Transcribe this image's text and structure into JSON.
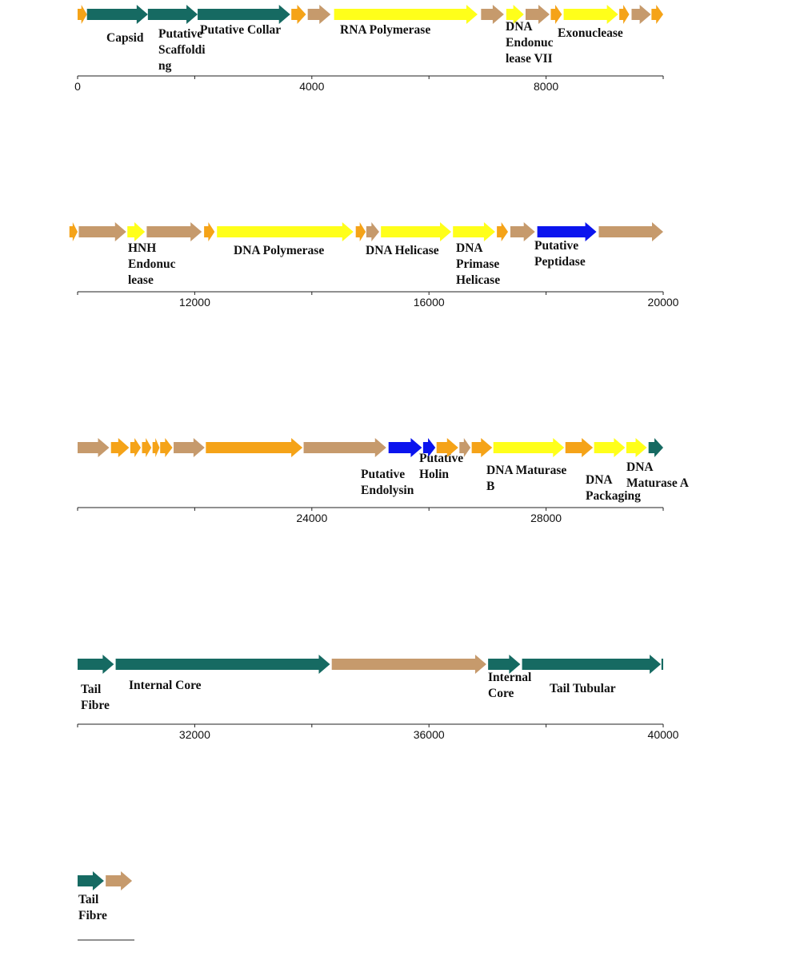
{
  "colors": {
    "structural": "#166a62",
    "replication": "#ffff1a",
    "lysis": "#0b14ee",
    "hypothetical_brown": "#c69a6c",
    "hypothetical_orange": "#f5a318",
    "axis": "#222222"
  },
  "tracks": [
    {
      "name": "track-1",
      "start": 0,
      "end": 10000,
      "ticks": [
        {
          "value": 0,
          "label": "0"
        },
        {
          "value": 4000,
          "label": "4000"
        },
        {
          "value": 8000,
          "label": "8000"
        }
      ],
      "genes": [
        {
          "start": 0,
          "end": 160,
          "kind": "hypothetical_orange",
          "label": []
        },
        {
          "start": 160,
          "end": 1200,
          "kind": "structural",
          "label": [
            "Capsid"
          ]
        },
        {
          "start": 1200,
          "end": 2050,
          "kind": "structural",
          "label": [
            "Putative",
            "Scaffoldi",
            "ng"
          ]
        },
        {
          "start": 2050,
          "end": 3630,
          "kind": "structural",
          "label": [
            "Putative Collar"
          ]
        },
        {
          "start": 3650,
          "end": 3900,
          "kind": "hypothetical_orange",
          "label": []
        },
        {
          "start": 3930,
          "end": 4320,
          "kind": "hypothetical_brown",
          "label": []
        },
        {
          "start": 4380,
          "end": 6830,
          "kind": "replication",
          "label": [
            "RNA Polymerase"
          ]
        },
        {
          "start": 6890,
          "end": 7280,
          "kind": "hypothetical_brown",
          "label": []
        },
        {
          "start": 7320,
          "end": 7620,
          "kind": "replication",
          "label": [
            "DNA",
            "Endonuc",
            "lease VII"
          ]
        },
        {
          "start": 7650,
          "end": 8060,
          "kind": "hypothetical_brown",
          "label": []
        },
        {
          "start": 8080,
          "end": 8270,
          "kind": "hypothetical_orange",
          "label": []
        },
        {
          "start": 8300,
          "end": 9230,
          "kind": "replication",
          "label": [
            "Exonuclease"
          ]
        },
        {
          "start": 9250,
          "end": 9420,
          "kind": "hypothetical_orange",
          "label": []
        },
        {
          "start": 9460,
          "end": 9790,
          "kind": "hypothetical_brown",
          "label": []
        },
        {
          "start": 9800,
          "end": 10000,
          "kind": "hypothetical_orange",
          "label": []
        }
      ]
    },
    {
      "name": "track-2",
      "start": 10000,
      "end": 20000,
      "ticks": [
        {
          "value": 12000,
          "label": "12000"
        },
        {
          "value": 16000,
          "label": "16000"
        },
        {
          "value": 20000,
          "label": "20000"
        }
      ],
      "genes": [
        {
          "start": 9860,
          "end": 10000,
          "kind": "hypothetical_orange",
          "label": []
        },
        {
          "start": 10020,
          "end": 10830,
          "kind": "hypothetical_brown",
          "label": []
        },
        {
          "start": 10850,
          "end": 11150,
          "kind": "replication",
          "label": [
            "HNH",
            "Endonuc",
            "lease"
          ]
        },
        {
          "start": 11180,
          "end": 12120,
          "kind": "hypothetical_brown",
          "label": []
        },
        {
          "start": 12160,
          "end": 12340,
          "kind": "hypothetical_orange",
          "label": []
        },
        {
          "start": 12380,
          "end": 14710,
          "kind": "replication",
          "label": [
            "DNA Polymerase"
          ]
        },
        {
          "start": 14750,
          "end": 14920,
          "kind": "hypothetical_orange",
          "label": []
        },
        {
          "start": 14930,
          "end": 15150,
          "kind": "hypothetical_brown",
          "label": []
        },
        {
          "start": 15180,
          "end": 16380,
          "kind": "replication",
          "label": [
            "DNA Helicase"
          ]
        },
        {
          "start": 16410,
          "end": 17130,
          "kind": "replication",
          "label": [
            "DNA",
            "Primase",
            "Helicase"
          ]
        },
        {
          "start": 17160,
          "end": 17350,
          "kind": "hypothetical_orange",
          "label": []
        },
        {
          "start": 17390,
          "end": 17810,
          "kind": "hypothetical_brown",
          "label": []
        },
        {
          "start": 17850,
          "end": 18860,
          "kind": "lysis",
          "label": [
            "Putative",
            "Peptidase"
          ]
        },
        {
          "start": 18900,
          "end": 20000,
          "kind": "hypothetical_brown",
          "label": []
        }
      ]
    },
    {
      "name": "track-3",
      "start": 20000,
      "end": 30000,
      "ticks": [
        {
          "value": 24000,
          "label": "24000"
        },
        {
          "value": 28000,
          "label": "28000"
        }
      ],
      "genes": [
        {
          "start": 20000,
          "end": 20540,
          "kind": "hypothetical_brown",
          "label": []
        },
        {
          "start": 20570,
          "end": 20880,
          "kind": "hypothetical_orange",
          "label": []
        },
        {
          "start": 20900,
          "end": 21080,
          "kind": "hypothetical_orange",
          "label": []
        },
        {
          "start": 21100,
          "end": 21260,
          "kind": "hypothetical_orange",
          "label": []
        },
        {
          "start": 21280,
          "end": 21400,
          "kind": "hypothetical_orange",
          "label": []
        },
        {
          "start": 21410,
          "end": 21620,
          "kind": "hypothetical_orange",
          "label": []
        },
        {
          "start": 21640,
          "end": 22170,
          "kind": "hypothetical_brown",
          "label": []
        },
        {
          "start": 22190,
          "end": 23840,
          "kind": "hypothetical_orange",
          "label": []
        },
        {
          "start": 23860,
          "end": 25270,
          "kind": "hypothetical_brown",
          "label": []
        },
        {
          "start": 25310,
          "end": 25880,
          "kind": "lysis",
          "label": [
            "Putative",
            "Endolysin"
          ]
        },
        {
          "start": 25900,
          "end": 26110,
          "kind": "lysis",
          "label": [
            "Putative",
            "Holin"
          ]
        },
        {
          "start": 26130,
          "end": 26500,
          "kind": "hypothetical_orange",
          "label": []
        },
        {
          "start": 26520,
          "end": 26710,
          "kind": "hypothetical_brown",
          "label": []
        },
        {
          "start": 26730,
          "end": 27080,
          "kind": "hypothetical_orange",
          "label": []
        },
        {
          "start": 27100,
          "end": 28310,
          "kind": "replication",
          "label": [
            "DNA Maturase",
            "B"
          ]
        },
        {
          "start": 28330,
          "end": 28800,
          "kind": "hypothetical_orange",
          "label": []
        },
        {
          "start": 28820,
          "end": 29350,
          "kind": "replication",
          "label": [
            "DNA",
            "Packaging"
          ]
        },
        {
          "start": 29370,
          "end": 29720,
          "kind": "replication",
          "label": [
            "DNA",
            "Maturase A"
          ]
        },
        {
          "start": 29750,
          "end": 30000,
          "kind": "structural",
          "label": []
        }
      ]
    },
    {
      "name": "track-4",
      "start": 30000,
      "end": 40000,
      "ticks": [
        {
          "value": 32000,
          "label": "32000"
        },
        {
          "value": 36000,
          "label": "36000"
        },
        {
          "value": 40000,
          "label": "40000"
        }
      ],
      "genes": [
        {
          "start": 30000,
          "end": 30620,
          "kind": "structural",
          "label": [
            "Tail",
            "Fibre"
          ]
        },
        {
          "start": 30650,
          "end": 34310,
          "kind": "structural",
          "label": [
            "Internal Core"
          ]
        },
        {
          "start": 34340,
          "end": 36980,
          "kind": "hypothetical_brown",
          "label": []
        },
        {
          "start": 37010,
          "end": 37560,
          "kind": "structural",
          "label": [
            "Internal",
            "Core"
          ]
        },
        {
          "start": 37590,
          "end": 39960,
          "kind": "structural",
          "label": [
            "Tail Tubular"
          ]
        },
        {
          "start": 39970,
          "end": 40000,
          "kind": "structural",
          "label": []
        }
      ]
    },
    {
      "name": "track-5",
      "start": 40000,
      "end": 41000,
      "ticks": [],
      "genes": [
        {
          "start": 40000,
          "end": 40450,
          "kind": "structural",
          "label": [
            "Tail",
            "Fibre"
          ]
        },
        {
          "start": 40480,
          "end": 40930,
          "kind": "hypothetical_brown",
          "label": []
        }
      ]
    }
  ]
}
